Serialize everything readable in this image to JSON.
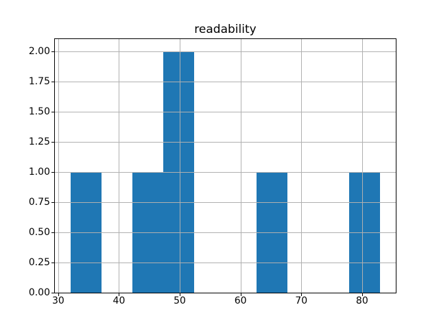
{
  "figure": {
    "background": "#ffffff",
    "spine_color": "#000000",
    "tick_color": "#000000",
    "text_color": "#000000"
  },
  "chart_data": {
    "type": "bar",
    "title": "readability",
    "xlabel": "",
    "ylabel": "",
    "bar_color": "#1f77b4",
    "grid": true,
    "grid_color": "#b0b0b0",
    "legend": false,
    "xlim": [
      29.45,
      85.55
    ],
    "ylim": [
      0,
      2.1
    ],
    "xticks": [
      30,
      40,
      50,
      60,
      70,
      80
    ],
    "xtick_labels": [
      "30",
      "40",
      "50",
      "60",
      "70",
      "80"
    ],
    "yticks": [
      0.0,
      0.25,
      0.5,
      0.75,
      1.0,
      1.25,
      1.5,
      1.75,
      2.0
    ],
    "ytick_labels": [
      "0.00",
      "0.25",
      "0.50",
      "0.75",
      "1.00",
      "1.25",
      "1.50",
      "1.75",
      "2.00"
    ],
    "bin_edges": [
      32.0,
      37.1,
      42.2,
      47.3,
      52.4,
      57.5,
      62.6,
      67.7,
      72.8,
      77.9,
      83.0
    ],
    "counts": [
      1,
      0,
      1,
      2,
      0,
      0,
      1,
      0,
      0,
      1
    ]
  }
}
